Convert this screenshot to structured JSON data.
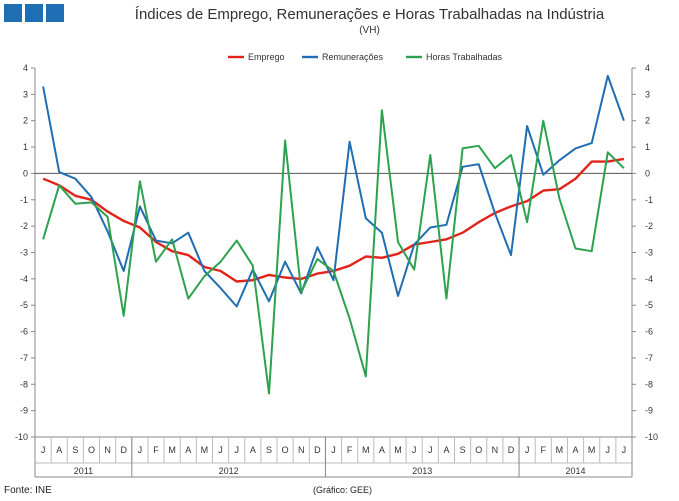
{
  "branding": {
    "logo": "ine-logo",
    "logo_color": "#1f6db3"
  },
  "footer": {
    "source": "Fonte: INE",
    "credit": "(Gráfico: GEE)"
  },
  "chart_data": {
    "type": "line",
    "title": "Índices de Emprego, Remunerações e Horas Trabalhadas na Indústria",
    "subtitle": "(VH)",
    "ylim": [
      -10,
      4
    ],
    "yticks": [
      4,
      3,
      2,
      1,
      0,
      -1,
      -2,
      -3,
      -4,
      -5,
      -6,
      -7,
      -8,
      -9,
      -10
    ],
    "grid": false,
    "legend_position": "top-center",
    "categories": [
      "J",
      "A",
      "S",
      "O",
      "N",
      "D",
      "J",
      "F",
      "M",
      "A",
      "M",
      "J",
      "J",
      "A",
      "S",
      "O",
      "N",
      "D",
      "J",
      "F",
      "M",
      "A",
      "M",
      "J",
      "J",
      "A",
      "S",
      "O",
      "N",
      "D",
      "J",
      "F",
      "M",
      "A",
      "M",
      "J",
      "J"
    ],
    "year_groups": [
      {
        "label": "2011",
        "count": 6
      },
      {
        "label": "2012",
        "count": 12
      },
      {
        "label": "2013",
        "count": 12
      },
      {
        "label": "2014",
        "count": 7
      }
    ],
    "series": [
      {
        "name": "Emprego",
        "color": "#e2231a",
        "values": [
          -0.2,
          -0.45,
          -0.85,
          -1.0,
          -1.45,
          -1.8,
          -2.05,
          -2.6,
          -2.95,
          -3.1,
          -3.55,
          -3.7,
          -4.1,
          -4.05,
          -3.85,
          -3.95,
          -4.0,
          -3.8,
          -3.7,
          -3.5,
          -3.15,
          -3.2,
          -3.05,
          -2.7,
          -2.6,
          -2.5,
          -2.25,
          -1.85,
          -1.5,
          -1.25,
          -1.05,
          -0.65,
          -0.6,
          -0.2,
          0.45,
          0.45,
          0.55
        ]
      },
      {
        "name": "Remunerações",
        "color": "#1f6db3",
        "values": [
          3.3,
          0.05,
          -0.2,
          -0.9,
          -2.2,
          -3.7,
          -1.25,
          -2.55,
          -2.65,
          -2.25,
          -3.7,
          -4.35,
          -5.05,
          -3.65,
          -4.85,
          -3.35,
          -4.55,
          -2.8,
          -4.05,
          1.2,
          -1.7,
          -2.25,
          -4.65,
          -2.7,
          -2.05,
          -1.95,
          0.25,
          0.35,
          -1.5,
          -3.1,
          1.8,
          -0.05,
          0.5,
          0.95,
          1.15,
          3.7,
          2.0
        ]
      },
      {
        "name": "Horas Trabalhadas",
        "color": "#2ca24f",
        "values": [
          -2.5,
          -0.45,
          -1.15,
          -1.1,
          -1.65,
          -5.4,
          -0.3,
          -3.35,
          -2.5,
          -4.75,
          -3.9,
          -3.35,
          -2.55,
          -3.5,
          -8.35,
          1.25,
          -4.5,
          -3.25,
          -3.7,
          -5.5,
          -7.7,
          2.4,
          -2.6,
          -3.65,
          0.7,
          -4.75,
          0.95,
          1.05,
          0.2,
          0.7,
          -1.85,
          2.0,
          -0.95,
          -2.85,
          -2.95,
          0.8,
          0.2
        ]
      }
    ]
  }
}
